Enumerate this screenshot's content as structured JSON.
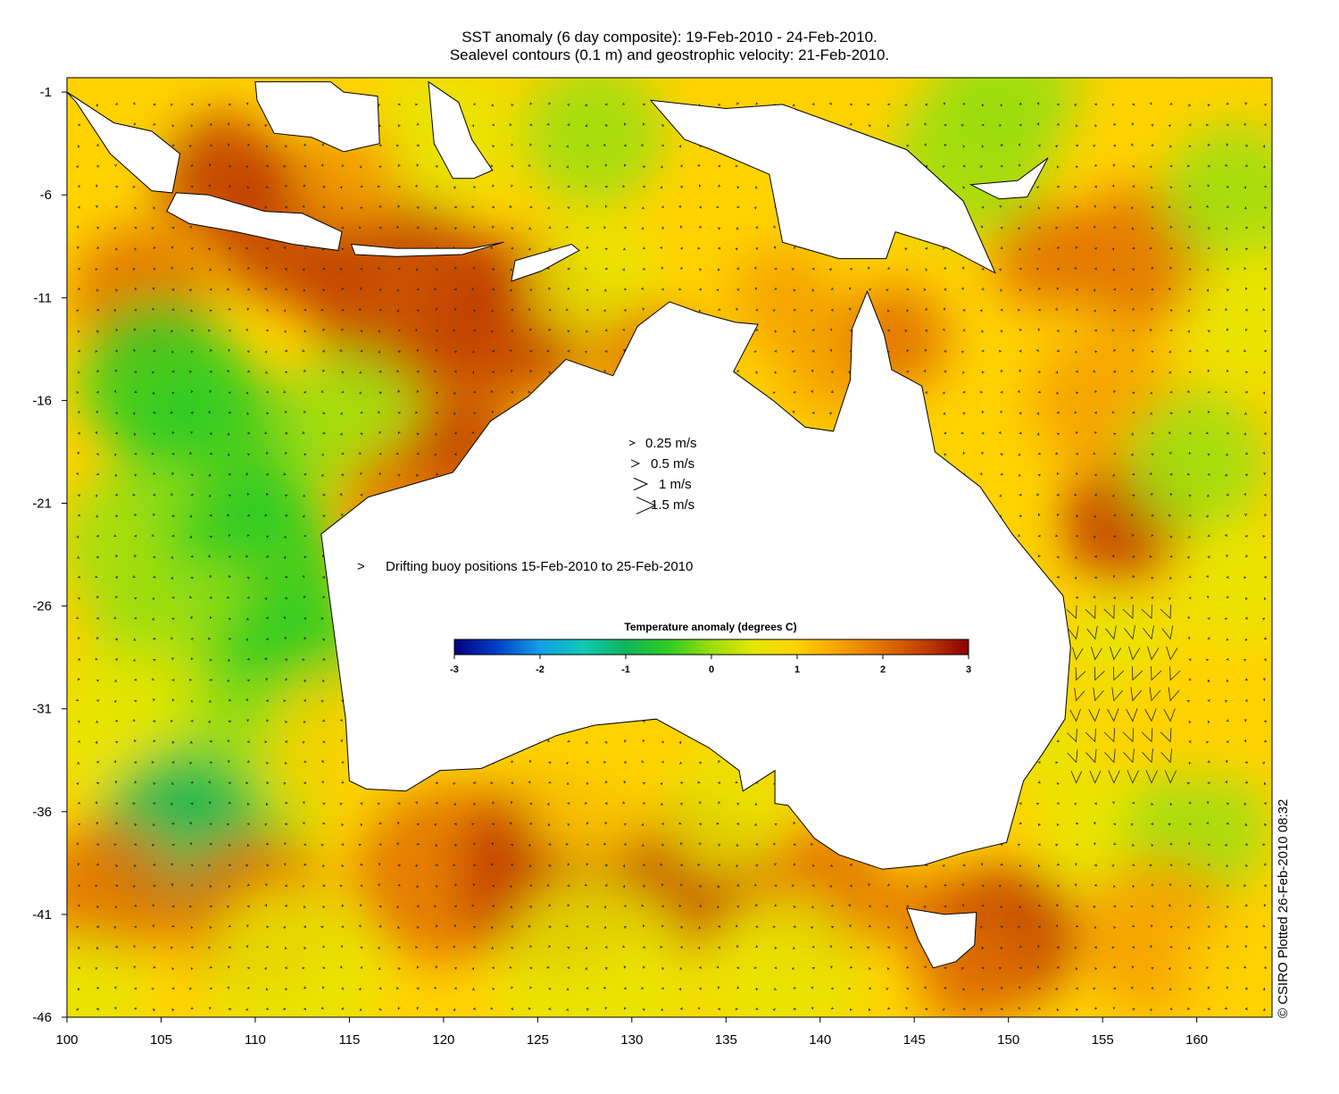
{
  "title": {
    "line1": "SST anomaly (6 day composite): 19-Feb-2010 - 24-Feb-2010.",
    "line2": "Sealevel contours (0.1 m) and geostrophic velocity: 21-Feb-2010."
  },
  "map": {
    "lon_range": [
      100,
      164
    ],
    "lat_range": [
      -46,
      -0.3
    ],
    "x_ticks": [
      100,
      105,
      110,
      115,
      120,
      125,
      130,
      135,
      140,
      145,
      150,
      155,
      160
    ],
    "y_ticks": [
      -1,
      -6,
      -11,
      -16,
      -21,
      -26,
      -31,
      -36,
      -41,
      -46
    ],
    "colorscale": [
      "#00007f",
      "#0040c8",
      "#14a0e6",
      "#10c8b4",
      "#10b45a",
      "#30cc20",
      "#9ade10",
      "#e6e600",
      "#ffd200",
      "#f5a000",
      "#e07000",
      "#c03c00",
      "#8c0000"
    ],
    "land_color": "#ffffff"
  },
  "velocity_legend": {
    "items": [
      {
        "label": "0.25 m/s",
        "speed": 0.25
      },
      {
        "label": "0.5 m/s",
        "speed": 0.5
      },
      {
        "label": "1 m/s",
        "speed": 1
      },
      {
        "label": "1.5 m/s",
        "speed": 1.5
      }
    ]
  },
  "buoy_legend": {
    "label": "Drifting buoy positions 15-Feb-2010 to 25-Feb-2010",
    "marker": ">",
    "color": "#e020e0"
  },
  "colorbar": {
    "title": "Temperature anomaly (degrees C)",
    "min": -3,
    "max": 3,
    "tick_labels": [
      "-3",
      "-2",
      "-1",
      "0",
      "1",
      "2",
      "3"
    ]
  },
  "credit": "© CSIRO Plotted 26-Feb-2010 08:32"
}
